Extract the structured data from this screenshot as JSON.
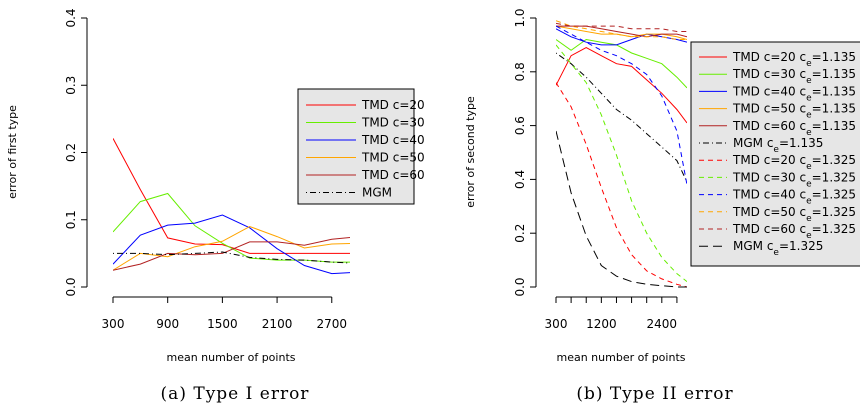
{
  "figure": {
    "caption_a": "(a)  Type I error",
    "caption_b": "(b)  Type II error"
  },
  "chart_data": [
    {
      "type": "line",
      "xlabel": "mean number of points",
      "ylabel": "error of first type",
      "xlim": [
        300,
        2900
      ],
      "ylim": [
        0,
        0.4
      ],
      "xticks": [
        300,
        900,
        1500,
        2100,
        2700
      ],
      "xtick_labels": [
        "300",
        "900",
        "1500",
        "2100",
        "2700"
      ],
      "yticks": [
        0.0,
        0.1,
        0.2,
        0.3,
        0.4
      ],
      "ytick_labels": [
        "0.0",
        "0.1",
        "0.2",
        "0.3",
        "0.4"
      ],
      "grid": false,
      "legend_position": "right",
      "x": [
        300,
        600,
        900,
        1200,
        1500,
        1800,
        2100,
        2400,
        2700,
        3000
      ],
      "series": [
        {
          "name": "TMD c=20",
          "color": "#ff0000",
          "dash": "solid",
          "values": [
            0.221,
            0.145,
            0.073,
            0.064,
            0.063,
            0.05,
            0.05,
            0.05,
            0.05,
            0.05
          ]
        },
        {
          "name": "TMD c=30",
          "color": "#66ee00",
          "dash": "solid",
          "values": [
            0.082,
            0.127,
            0.139,
            0.091,
            0.065,
            0.043,
            0.04,
            0.04,
            0.037,
            0.037
          ]
        },
        {
          "name": "TMD c=40",
          "color": "#0000ff",
          "dash": "solid",
          "values": [
            0.034,
            0.077,
            0.092,
            0.095,
            0.107,
            0.088,
            0.057,
            0.032,
            0.02,
            0.022
          ]
        },
        {
          "name": "TMD c=50",
          "color": "#ffa500",
          "dash": "solid",
          "values": [
            0.025,
            0.05,
            0.045,
            0.06,
            0.068,
            0.09,
            0.075,
            0.058,
            0.064,
            0.065
          ]
        },
        {
          "name": "TMD c=60",
          "color": "#b22222",
          "dash": "solid",
          "values": [
            0.025,
            0.034,
            0.05,
            0.048,
            0.05,
            0.067,
            0.067,
            0.062,
            0.071,
            0.075
          ]
        },
        {
          "name": "MGM",
          "color": "#000000",
          "dash": "dotdash",
          "values": [
            0.05,
            0.05,
            0.048,
            0.05,
            0.052,
            0.044,
            0.041,
            0.04,
            0.037,
            0.035
          ]
        }
      ]
    },
    {
      "type": "line",
      "xlabel": "mean number of points",
      "ylabel": "error of second type",
      "xlim": [
        300,
        2900
      ],
      "ylim": [
        0,
        1.0
      ],
      "xticks": [
        300,
        600,
        900,
        1200,
        1500,
        1800,
        2100,
        2400,
        2700
      ],
      "xtick_labels": [
        "300",
        "",
        "",
        "1200",
        "",
        "",
        "",
        "2400",
        ""
      ],
      "yticks": [
        0.0,
        0.2,
        0.4,
        0.6,
        0.8,
        1.0
      ],
      "ytick_labels": [
        "0.0",
        "0.2",
        "0.4",
        "0.6",
        "0.8",
        "1.0"
      ],
      "grid": false,
      "legend_position": "right",
      "x": [
        300,
        600,
        900,
        1200,
        1500,
        1800,
        2100,
        2400,
        2700,
        2900
      ],
      "series": [
        {
          "name": "TMD c=20 c",
          "subscript": "e",
          "suffix": "=1.135",
          "color": "#ff0000",
          "dash": "solid",
          "values": [
            0.75,
            0.86,
            0.89,
            0.86,
            0.83,
            0.82,
            0.77,
            0.72,
            0.66,
            0.61
          ]
        },
        {
          "name": "TMD c=30 c",
          "subscript": "e",
          "suffix": "=1.135",
          "color": "#66ee00",
          "dash": "solid",
          "values": [
            0.92,
            0.88,
            0.92,
            0.91,
            0.9,
            0.87,
            0.85,
            0.83,
            0.78,
            0.74
          ]
        },
        {
          "name": "TMD c=40 c",
          "subscript": "e",
          "suffix": "=1.135",
          "color": "#0000ff",
          "dash": "solid",
          "values": [
            0.96,
            0.93,
            0.91,
            0.9,
            0.9,
            0.92,
            0.94,
            0.93,
            0.92,
            0.91
          ]
        },
        {
          "name": "TMD c=50 c",
          "subscript": "e",
          "suffix": "=1.135",
          "color": "#ffa500",
          "dash": "solid",
          "values": [
            0.97,
            0.96,
            0.95,
            0.94,
            0.94,
            0.93,
            0.94,
            0.94,
            0.93,
            0.92
          ]
        },
        {
          "name": "TMD c=60 c",
          "subscript": "e",
          "suffix": "=1.135",
          "color": "#b22222",
          "dash": "solid",
          "values": [
            0.97,
            0.97,
            0.97,
            0.96,
            0.95,
            0.94,
            0.93,
            0.94,
            0.94,
            0.93
          ]
        },
        {
          "name": "MGM c",
          "subscript": "e",
          "suffix": "=1.135",
          "color": "#000000",
          "dash": "dotdash",
          "values": [
            0.87,
            0.83,
            0.78,
            0.72,
            0.66,
            0.62,
            0.57,
            0.52,
            0.47,
            0.39
          ]
        },
        {
          "name": "TMD c=20 c",
          "subscript": "e",
          "suffix": "=1.325",
          "color": "#ff0000",
          "dash": "dashed",
          "values": [
            0.76,
            0.67,
            0.53,
            0.37,
            0.22,
            0.12,
            0.06,
            0.03,
            0.01,
            0.0
          ]
        },
        {
          "name": "TMD c=30 c",
          "subscript": "e",
          "suffix": "=1.325",
          "color": "#66ee00",
          "dash": "dashed",
          "values": [
            0.9,
            0.83,
            0.76,
            0.64,
            0.49,
            0.32,
            0.2,
            0.11,
            0.05,
            0.02
          ]
        },
        {
          "name": "TMD c=40 c",
          "subscript": "e",
          "suffix": "=1.325",
          "color": "#0000ff",
          "dash": "dashed",
          "values": [
            0.97,
            0.94,
            0.91,
            0.88,
            0.86,
            0.83,
            0.79,
            0.71,
            0.58,
            0.38
          ]
        },
        {
          "name": "TMD c=50 c",
          "subscript": "e",
          "suffix": "=1.325",
          "color": "#ffa500",
          "dash": "dashed",
          "values": [
            0.99,
            0.97,
            0.96,
            0.95,
            0.94,
            0.93,
            0.93,
            0.93,
            0.92,
            0.92
          ]
        },
        {
          "name": "TMD c=60 c",
          "subscript": "e",
          "suffix": "=1.325",
          "color": "#b22222",
          "dash": "dashed",
          "values": [
            0.98,
            0.97,
            0.97,
            0.97,
            0.97,
            0.96,
            0.96,
            0.96,
            0.95,
            0.95
          ]
        },
        {
          "name": "MGM c",
          "subscript": "e",
          "suffix": "=1.325",
          "color": "#000000",
          "dash": "longdash",
          "values": [
            0.58,
            0.35,
            0.19,
            0.08,
            0.04,
            0.02,
            0.01,
            0.005,
            0.0,
            0.0
          ]
        }
      ]
    }
  ]
}
